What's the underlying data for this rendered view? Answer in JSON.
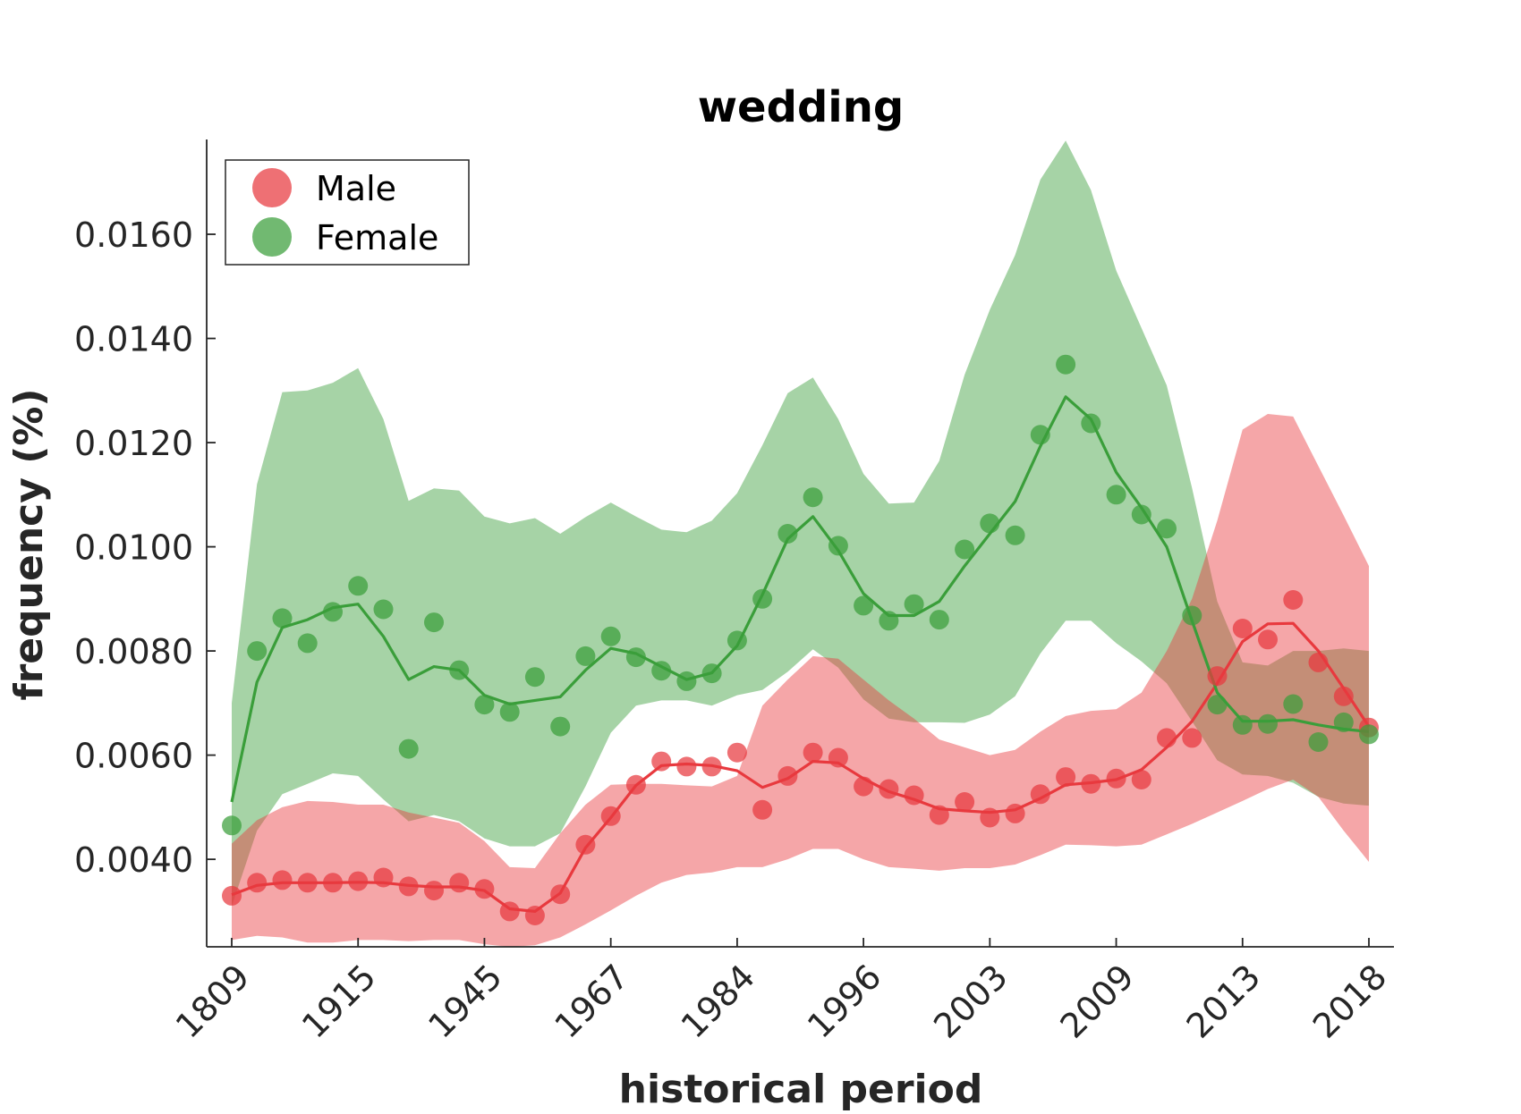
{
  "chart_data": {
    "type": "line",
    "title": "wedding",
    "xlabel": "historical period",
    "ylabel": "frequency (%)",
    "x_tick_labels": [
      "1809",
      "1915",
      "1945",
      "1967",
      "1984",
      "1996",
      "2003",
      "2009",
      "2013",
      "2018"
    ],
    "y_ticks": [
      0.004,
      0.006,
      0.008,
      0.01,
      0.012,
      0.014,
      0.016
    ],
    "y_tick_labels": [
      "0.0040",
      "0.0060",
      "0.0080",
      "0.0100",
      "0.0120",
      "0.0140",
      "0.0160"
    ],
    "ylim": [
      0.00232,
      0.01782
    ],
    "xlim": [
      0,
      45
    ],
    "legend_position": "top-left",
    "grid": false,
    "series": [
      {
        "name": "Male",
        "color": "#e8393e",
        "points": [
          0.0033,
          0.00355,
          0.0036,
          0.00355,
          0.00355,
          0.00358,
          0.00365,
          0.00348,
          0.0034,
          0.00355,
          0.00343,
          0.003,
          0.00292,
          0.00333,
          0.00428,
          0.00483,
          0.00543,
          0.00588,
          0.00578,
          0.00578,
          0.00605,
          0.00495,
          0.0056,
          0.00605,
          0.00595,
          0.0054,
          0.00535,
          0.00523,
          0.00485,
          0.0051,
          0.0048,
          0.00488,
          0.00525,
          0.00558,
          0.00545,
          0.00555,
          0.00553,
          0.00633,
          0.00633,
          0.00752,
          0.00843,
          0.00822,
          0.00898,
          0.00778,
          0.00713,
          0.00653
        ],
        "line": [
          0.00332,
          0.0035,
          0.00355,
          0.00355,
          0.00355,
          0.00356,
          0.00355,
          0.0035,
          0.00347,
          0.00347,
          0.0034,
          0.00305,
          0.003,
          0.00335,
          0.00422,
          0.0048,
          0.00542,
          0.0058,
          0.00583,
          0.0058,
          0.0057,
          0.00538,
          0.00555,
          0.00588,
          0.00585,
          0.00555,
          0.0053,
          0.00515,
          0.00497,
          0.00493,
          0.0049,
          0.00495,
          0.00517,
          0.00543,
          0.00547,
          0.00553,
          0.00572,
          0.00615,
          0.00665,
          0.00738,
          0.00818,
          0.00852,
          0.00853,
          0.008,
          0.00728,
          0.00655
        ],
        "upper": [
          0.0043,
          0.00475,
          0.005,
          0.00512,
          0.0051,
          0.00505,
          0.00505,
          0.0049,
          0.0048,
          0.0047,
          0.00435,
          0.00385,
          0.00383,
          0.0045,
          0.00505,
          0.00543,
          0.00545,
          0.00545,
          0.00542,
          0.0054,
          0.0056,
          0.00695,
          0.00745,
          0.0079,
          0.00785,
          0.00745,
          0.00705,
          0.0067,
          0.0063,
          0.00615,
          0.006,
          0.0061,
          0.00645,
          0.00675,
          0.00685,
          0.00688,
          0.0072,
          0.008,
          0.009,
          0.0105,
          0.01225,
          0.01255,
          0.0125,
          0.01155,
          0.0106,
          0.00963
        ],
        "lower": [
          0.00245,
          0.00253,
          0.0025,
          0.0024,
          0.0024,
          0.00245,
          0.00245,
          0.00243,
          0.00245,
          0.00245,
          0.00237,
          0.00232,
          0.00235,
          0.0025,
          0.00275,
          0.00302,
          0.0033,
          0.00355,
          0.0037,
          0.00375,
          0.00385,
          0.00385,
          0.004,
          0.0042,
          0.0042,
          0.004,
          0.00385,
          0.00382,
          0.00378,
          0.00383,
          0.00383,
          0.0039,
          0.00408,
          0.00428,
          0.00427,
          0.00425,
          0.00428,
          0.00448,
          0.00468,
          0.0049,
          0.00512,
          0.00535,
          0.00553,
          0.0052,
          0.00455,
          0.00395
        ]
      },
      {
        "name": "Female",
        "color": "#3a9e3a",
        "points": [
          0.00465,
          0.008,
          0.00863,
          0.00815,
          0.00875,
          0.00925,
          0.0088,
          0.00612,
          0.00855,
          0.00763,
          0.00697,
          0.00683,
          0.0075,
          0.00655,
          0.0079,
          0.00828,
          0.00788,
          0.00762,
          0.00742,
          0.00757,
          0.0082,
          0.009,
          0.01025,
          0.01095,
          0.01002,
          0.00887,
          0.00858,
          0.0089,
          0.0086,
          0.00995,
          0.01045,
          0.01022,
          0.01215,
          0.0135,
          0.01237,
          0.011,
          0.01062,
          0.01035,
          0.00868,
          0.00697,
          0.00658,
          0.0066,
          0.00698,
          0.00625,
          0.00663,
          0.0064
        ],
        "line": [
          0.0051,
          0.0074,
          0.00845,
          0.0086,
          0.00883,
          0.0089,
          0.00828,
          0.00745,
          0.0077,
          0.00763,
          0.00715,
          0.00698,
          0.00705,
          0.00712,
          0.00763,
          0.00805,
          0.00795,
          0.0077,
          0.00745,
          0.00758,
          0.0081,
          0.00908,
          0.01015,
          0.01058,
          0.00993,
          0.0091,
          0.00868,
          0.00868,
          0.00895,
          0.00963,
          0.01025,
          0.01087,
          0.01193,
          0.01288,
          0.01245,
          0.01143,
          0.01075,
          0.01,
          0.00858,
          0.0072,
          0.00665,
          0.00665,
          0.00668,
          0.00658,
          0.0065,
          0.00645
        ],
        "upper": [
          0.007,
          0.0112,
          0.01297,
          0.013,
          0.01315,
          0.01343,
          0.01245,
          0.01088,
          0.01112,
          0.01108,
          0.01058,
          0.01045,
          0.01055,
          0.01025,
          0.01057,
          0.01085,
          0.01058,
          0.01033,
          0.01028,
          0.0105,
          0.01103,
          0.01195,
          0.01295,
          0.01325,
          0.01245,
          0.0114,
          0.01083,
          0.01085,
          0.01165,
          0.0133,
          0.01455,
          0.0156,
          0.01705,
          0.0178,
          0.01685,
          0.0153,
          0.0142,
          0.0131,
          0.01113,
          0.00895,
          0.00778,
          0.00772,
          0.008,
          0.008,
          0.00805,
          0.008
        ],
        "lower": [
          0.0031,
          0.00455,
          0.00525,
          0.00545,
          0.00565,
          0.0056,
          0.00515,
          0.00473,
          0.00485,
          0.00473,
          0.0044,
          0.00425,
          0.00425,
          0.0045,
          0.0054,
          0.00643,
          0.00695,
          0.00705,
          0.00705,
          0.00695,
          0.00715,
          0.00725,
          0.0076,
          0.00803,
          0.00768,
          0.00707,
          0.0067,
          0.00663,
          0.00663,
          0.00662,
          0.00678,
          0.00713,
          0.00795,
          0.00858,
          0.00858,
          0.00815,
          0.0078,
          0.00738,
          0.00665,
          0.0059,
          0.00563,
          0.0056,
          0.00547,
          0.0052,
          0.00507,
          0.00503
        ]
      }
    ]
  }
}
